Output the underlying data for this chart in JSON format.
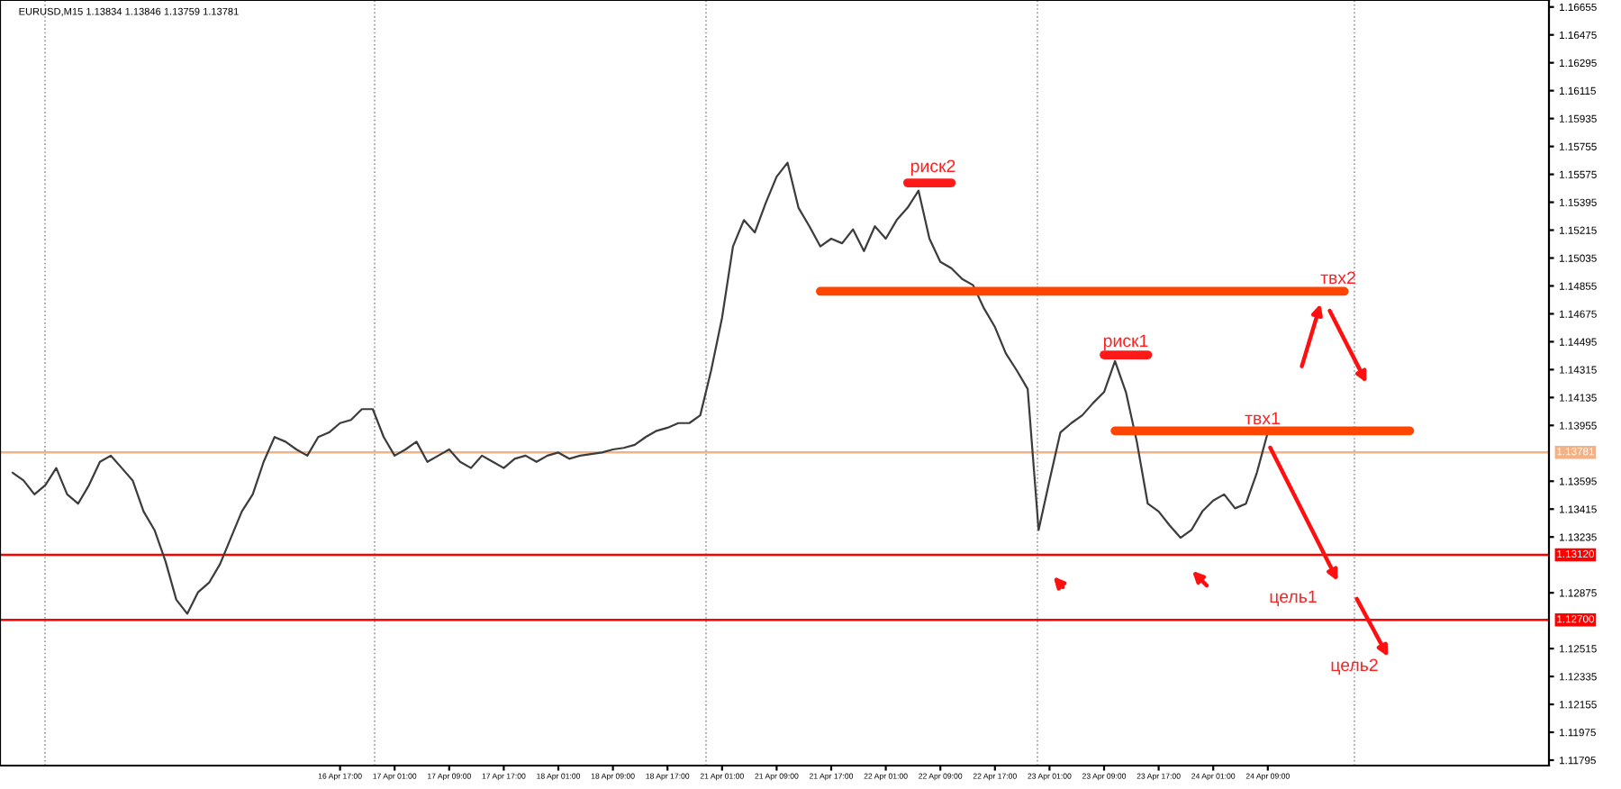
{
  "chart_data": {
    "type": "line",
    "title": "EURUSD,M15 1.13834 1.13846 1.13759 1.13781",
    "categories": [
      null,
      null,
      null,
      null,
      null,
      null,
      null,
      null,
      null,
      null,
      null,
      null,
      null,
      null,
      null,
      null,
      null,
      null,
      null,
      null,
      null,
      null,
      null,
      null,
      null,
      null,
      null,
      null,
      null,
      null,
      "16 Apr 17:00",
      null,
      null,
      null,
      null,
      "17 Apr 01:00",
      null,
      null,
      null,
      null,
      "17 Apr 09:00",
      null,
      null,
      null,
      null,
      "17 Apr 17:00",
      null,
      null,
      null,
      null,
      "18 Apr 01:00",
      null,
      null,
      null,
      null,
      "18 Apr 09:00",
      null,
      null,
      null,
      null,
      "18 Apr 17:00",
      null,
      null,
      null,
      null,
      "21 Apr 01:00",
      null,
      null,
      null,
      null,
      "21 Apr 09:00",
      null,
      null,
      null,
      null,
      "21 Apr 17:00",
      null,
      null,
      null,
      null,
      "22 Apr 01:00",
      null,
      null,
      null,
      null,
      "22 Apr 09:00",
      null,
      null,
      null,
      null,
      "22 Apr 17:00",
      null,
      null,
      null,
      null,
      "23 Apr 01:00",
      null,
      null,
      null,
      null,
      "23 Apr 09:00",
      null,
      null,
      null,
      null,
      "23 Apr 17:00",
      null,
      null,
      null,
      null,
      "24 Apr 01:00",
      null,
      null,
      null,
      null,
      "24 Apr 09:00",
      null,
      null,
      null,
      null,
      null,
      null,
      null,
      null,
      null,
      null,
      null,
      null,
      null
    ],
    "series": [
      {
        "color": "#3c3c3c",
        "values": [
          1.1365,
          1.136,
          1.1351,
          1.1357,
          1.1368,
          1.1351,
          1.1345,
          1.1357,
          1.1372,
          1.1376,
          1.1368,
          1.136,
          1.134,
          1.1328,
          1.1308,
          1.1283,
          1.1274,
          1.1288,
          1.1294,
          1.1306,
          1.1323,
          1.134,
          1.1351,
          1.1372,
          1.1388,
          1.1385,
          1.138,
          1.1376,
          1.1388,
          1.1391,
          1.1397,
          1.1399,
          1.1406,
          1.1406,
          1.1388,
          1.1376,
          1.138,
          1.1385,
          1.1372,
          1.1376,
          1.138,
          1.1372,
          1.1368,
          1.1376,
          1.1372,
          1.1368,
          1.1374,
          1.1376,
          1.1372,
          1.1376,
          1.1378,
          1.1374,
          1.1376,
          1.1377,
          1.1378,
          1.138,
          1.1381,
          1.1383,
          1.1388,
          1.1392,
          1.1394,
          1.1397,
          1.1397,
          1.1402,
          1.1431,
          1.1465,
          1.1511,
          1.1528,
          1.152,
          1.1539,
          1.1556,
          1.1565,
          1.1536,
          1.1524,
          1.1511,
          1.1516,
          1.1513,
          1.1522,
          1.1508,
          1.1524,
          1.1516,
          1.1528,
          1.1536,
          1.1547,
          1.1516,
          1.1501,
          1.1497,
          1.149,
          1.1486,
          1.1471,
          1.1459,
          1.1442,
          1.1431,
          1.1419,
          1.1328,
          1.136,
          1.1391,
          1.1397,
          1.1402,
          1.141,
          1.1417,
          1.1437,
          1.1417,
          1.1385,
          1.1345,
          1.134,
          1.1331,
          1.1323,
          1.1328,
          1.134,
          1.1347,
          1.1351,
          1.1342,
          1.1345,
          1.1365,
          1.1391,
          null,
          null,
          null,
          null,
          null,
          null,
          null,
          null,
          null,
          null,
          null,
          null,
          null
        ]
      },
      {
        "color": "#ff4500",
        "values": [
          null,
          null,
          null,
          null,
          null,
          null,
          null,
          null,
          null,
          null,
          null,
          null,
          null,
          null,
          null,
          null,
          null,
          null,
          null,
          null,
          null,
          null,
          null,
          null,
          null,
          null,
          null,
          null,
          null,
          null,
          null,
          null,
          null,
          null,
          null,
          null,
          null,
          null,
          null,
          null,
          null,
          null,
          null,
          null,
          null,
          null,
          null,
          null,
          null,
          null,
          null,
          null,
          null,
          null,
          null,
          null,
          null,
          null,
          null,
          null,
          null,
          null,
          null,
          null,
          null,
          null,
          null,
          null,
          null,
          null,
          null,
          null,
          null,
          null,
          1.1482,
          1.1482,
          1.1482,
          1.1482,
          1.1482,
          1.1482,
          1.1482,
          1.1482,
          1.1482,
          1.1482,
          1.1482,
          1.1482,
          1.1482,
          1.1482,
          1.1482,
          1.1482,
          1.1482,
          1.1482,
          1.1482,
          1.1482,
          1.1482,
          1.1482,
          1.1482,
          1.1482,
          1.1482,
          1.1482,
          1.1482,
          1.1482,
          1.1482,
          1.1482,
          1.1482,
          1.1482,
          1.1482,
          1.1482,
          1.1482,
          1.1482,
          1.1482,
          1.1482,
          1.1482,
          1.1482,
          1.1482,
          1.1482,
          1.1482,
          1.1482,
          1.1482,
          1.1482,
          1.1482,
          1.1482,
          1.1482,
          null,
          null,
          null,
          null,
          null,
          null
        ]
      },
      {
        "color": "#ff4500",
        "values": [
          null,
          null,
          null,
          null,
          null,
          null,
          null,
          null,
          null,
          null,
          null,
          null,
          null,
          null,
          null,
          null,
          null,
          null,
          null,
          null,
          null,
          null,
          null,
          null,
          null,
          null,
          null,
          null,
          null,
          null,
          null,
          null,
          null,
          null,
          null,
          null,
          null,
          null,
          null,
          null,
          null,
          null,
          null,
          null,
          null,
          null,
          null,
          null,
          null,
          null,
          null,
          null,
          null,
          null,
          null,
          null,
          null,
          null,
          null,
          null,
          null,
          null,
          null,
          null,
          null,
          null,
          null,
          null,
          null,
          null,
          null,
          null,
          null,
          null,
          null,
          null,
          null,
          null,
          null,
          null,
          null,
          null,
          null,
          null,
          null,
          null,
          null,
          null,
          null,
          null,
          null,
          null,
          null,
          null,
          null,
          null,
          null,
          null,
          null,
          null,
          null,
          1.1392,
          1.1392,
          1.1392,
          1.1392,
          1.1392,
          1.1392,
          1.1392,
          1.1392,
          1.1392,
          1.1392,
          1.1392,
          1.1392,
          1.1392,
          1.1392,
          1.1392,
          1.1392,
          1.1392,
          1.1392,
          1.1392,
          1.1392,
          1.1392,
          1.1392,
          1.1392,
          1.1392,
          1.1392,
          1.1392,
          1.1392,
          1.1392
        ]
      },
      {
        "color": "#ff1a1a",
        "values": [
          null,
          null,
          null,
          null,
          null,
          null,
          null,
          null,
          null,
          null,
          null,
          null,
          null,
          null,
          null,
          null,
          null,
          null,
          null,
          null,
          null,
          null,
          null,
          null,
          null,
          null,
          null,
          null,
          null,
          null,
          null,
          null,
          null,
          null,
          null,
          null,
          null,
          null,
          null,
          null,
          null,
          null,
          null,
          null,
          null,
          null,
          null,
          null,
          null,
          null,
          null,
          null,
          null,
          null,
          null,
          null,
          null,
          null,
          null,
          null,
          null,
          null,
          null,
          null,
          null,
          null,
          null,
          null,
          null,
          null,
          null,
          null,
          null,
          null,
          null,
          null,
          null,
          null,
          null,
          null,
          null,
          null,
          1.1552,
          1.1552,
          1.1552,
          1.1552,
          1.1552,
          null,
          null,
          null,
          null,
          null,
          null,
          null,
          null,
          null,
          null,
          null,
          null,
          null,
          null,
          null,
          null,
          null,
          null,
          null,
          null,
          null,
          null,
          null,
          null,
          null,
          null,
          null,
          null,
          null,
          null,
          null,
          null,
          null,
          null,
          null,
          null,
          null,
          null,
          null,
          null,
          null,
          null
        ]
      },
      {
        "color": "#ff1a1a",
        "values": [
          null,
          null,
          null,
          null,
          null,
          null,
          null,
          null,
          null,
          null,
          null,
          null,
          null,
          null,
          null,
          null,
          null,
          null,
          null,
          null,
          null,
          null,
          null,
          null,
          null,
          null,
          null,
          null,
          null,
          null,
          null,
          null,
          null,
          null,
          null,
          null,
          null,
          null,
          null,
          null,
          null,
          null,
          null,
          null,
          null,
          null,
          null,
          null,
          null,
          null,
          null,
          null,
          null,
          null,
          null,
          null,
          null,
          null,
          null,
          null,
          null,
          null,
          null,
          null,
          null,
          null,
          null,
          null,
          null,
          null,
          null,
          null,
          null,
          null,
          null,
          null,
          null,
          null,
          null,
          null,
          null,
          null,
          null,
          null,
          null,
          null,
          null,
          null,
          null,
          null,
          null,
          null,
          null,
          null,
          null,
          null,
          null,
          null,
          null,
          null,
          1.1441,
          1.1441,
          1.1441,
          1.1441,
          1.1441,
          null,
          null,
          null,
          null,
          null,
          null,
          null,
          null,
          null,
          null,
          null,
          null,
          null,
          null,
          null,
          null,
          null,
          null,
          null,
          null,
          null,
          null,
          null,
          null
        ]
      }
    ],
    "ylim": [
      1.1176,
      1.167
    ],
    "yticks": [
      1.16655,
      1.16475,
      1.16295,
      1.16115,
      1.15935,
      1.15755,
      1.15575,
      1.15395,
      1.15215,
      1.15035,
      1.14855,
      1.14675,
      1.14495,
      1.14315,
      1.14135,
      1.13955,
      1.13595,
      1.13415,
      1.13235,
      1.12875,
      1.12515,
      1.12335,
      1.12155,
      1.11975,
      1.11795
    ],
    "ref_lines": [
      {
        "axis": "y",
        "value": 1.13781,
        "label": "1.13781",
        "color": "#f4b183"
      },
      {
        "axis": "y",
        "value": 1.1312,
        "label": "1.13120",
        "color": "#ff0000"
      },
      {
        "axis": "y",
        "value": 1.127,
        "label": "1.12700",
        "color": "#ff0000"
      }
    ],
    "annotations": [
      "риск2",
      "риск1",
      "твх1",
      "твх2",
      "цель1",
      "цель2"
    ],
    "grid": false,
    "legend": false,
    "marker": "none",
    "line_style": "solid"
  }
}
